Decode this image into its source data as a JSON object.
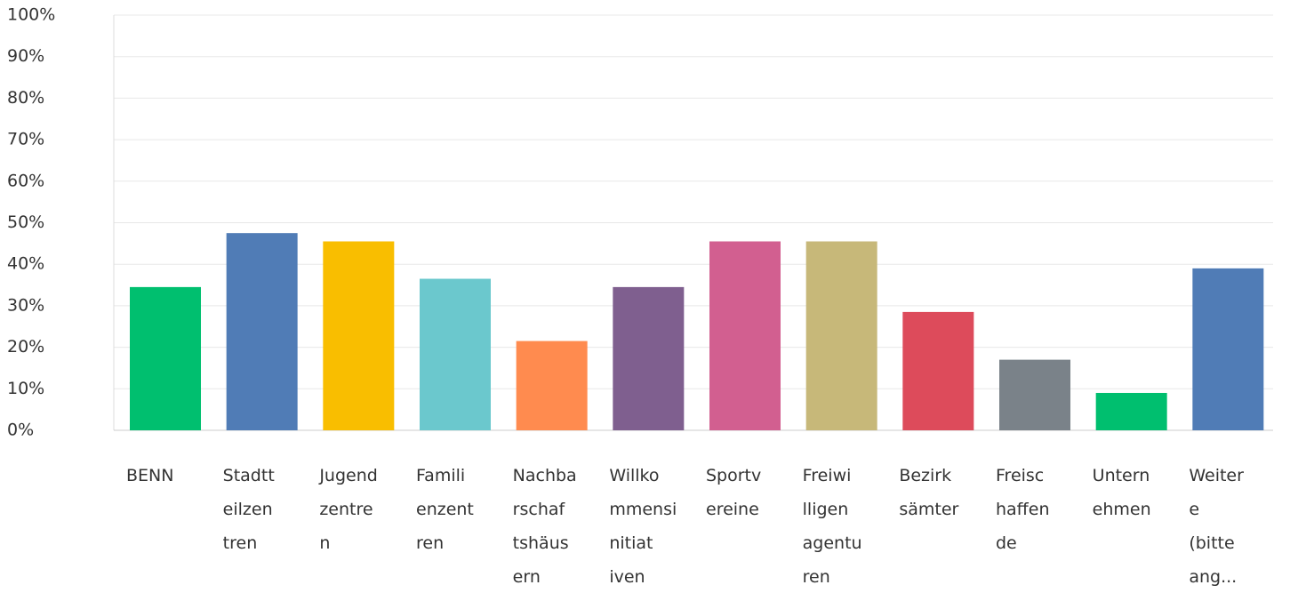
{
  "chart_data": {
    "type": "bar",
    "categories": [
      "BENN",
      "Stadtteilzentren",
      "Jugendzentren",
      "Familienzentren",
      "Nachbarschaftshäusern",
      "Willkommensinitiativen",
      "Sportvereine",
      "Freiwilligenagenturen",
      "Bezirksämter",
      "Freischaffende",
      "Unternehmen",
      "Weitere (bitte ang..."
    ],
    "values": [
      34.5,
      47.5,
      45.5,
      36.5,
      21.5,
      34.5,
      45.5,
      45.5,
      28.5,
      17,
      9,
      39
    ],
    "colors": [
      "#00bf6f",
      "#507cb6",
      "#f9be00",
      "#6bc8cd",
      "#ff8b4f",
      "#7f5f8f",
      "#d25f90",
      "#c7b879",
      "#dd4b5b",
      "#7a8289",
      "#00bf6f",
      "#507cb6"
    ],
    "ylim": [
      0,
      100
    ],
    "yticks": [
      {
        "value": 0,
        "label": "0%"
      },
      {
        "value": 10,
        "label": "10%"
      },
      {
        "value": 20,
        "label": "20%"
      },
      {
        "value": 30,
        "label": "30%"
      },
      {
        "value": 40,
        "label": "40%"
      },
      {
        "value": 50,
        "label": "50%"
      },
      {
        "value": 60,
        "label": "60%"
      },
      {
        "value": 70,
        "label": "70%"
      },
      {
        "value": 80,
        "label": "80%"
      },
      {
        "value": 90,
        "label": "90%"
      },
      {
        "value": 100,
        "label": "100%"
      }
    ],
    "grid": true
  }
}
